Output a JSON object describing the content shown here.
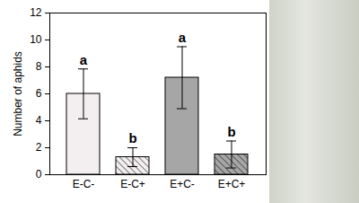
{
  "chart_data": {
    "type": "bar",
    "y_label": "Number of aphids",
    "categories": [
      "E-C-",
      "E-C+",
      "E+C-",
      "E+C+"
    ],
    "values": [
      6.0,
      1.3,
      7.2,
      1.5
    ],
    "errors": [
      1.85,
      0.7,
      2.3,
      1.0
    ],
    "annotations": [
      "a",
      "b",
      "a",
      "b"
    ],
    "colors": [
      "#f3eff1",
      "#f3eff1",
      "#a6a6a6",
      "#a6a6a6"
    ],
    "ylim": [
      0,
      12
    ],
    "yticks": [
      0,
      2,
      4,
      6,
      8,
      10,
      12
    ],
    "grid": false
  }
}
